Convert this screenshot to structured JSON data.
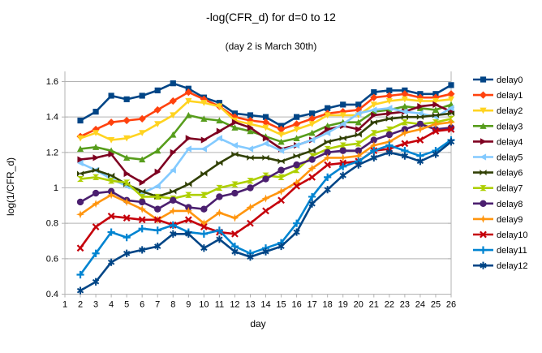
{
  "chart_data": {
    "type": "line",
    "title": "-log(CFR_d) for d=0 to 12",
    "subtitle": "(day 2 is March 30th)",
    "xlabel": "day",
    "ylabel": "log(1/CFR_d)",
    "x_ticks": [
      1,
      2,
      3,
      4,
      5,
      6,
      7,
      8,
      9,
      10,
      11,
      12,
      13,
      14,
      15,
      16,
      17,
      18,
      19,
      20,
      21,
      22,
      23,
      24,
      25,
      26
    ],
    "y_tick_labels": [
      "0.4",
      "0.6",
      "0.8",
      "1",
      "1.2",
      "1.4",
      "1.6"
    ],
    "y_ticks": [
      0.4,
      0.6,
      0.8,
      1.0,
      1.2,
      1.4,
      1.6
    ],
    "xlim": [
      1,
      26
    ],
    "ylim": [
      0.4,
      1.66
    ],
    "grid": "horizontal",
    "legend_position": "right",
    "grid_color": "#b3b3b3",
    "x": [
      2,
      3,
      4,
      5,
      6,
      7,
      8,
      9,
      10,
      11,
      12,
      13,
      14,
      15,
      16,
      17,
      18,
      19,
      20,
      21,
      22,
      23,
      24,
      25,
      26
    ],
    "series": [
      {
        "name": "delay0",
        "color": "#004586",
        "marker": "square",
        "values": [
          1.38,
          1.43,
          1.52,
          1.5,
          1.52,
          1.55,
          1.59,
          1.56,
          1.51,
          1.48,
          1.42,
          1.41,
          1.4,
          1.35,
          1.4,
          1.42,
          1.45,
          1.47,
          1.47,
          1.54,
          1.55,
          1.55,
          1.53,
          1.53,
          1.58
        ]
      },
      {
        "name": "delay1",
        "color": "#FF420E",
        "marker": "diamond",
        "values": [
          1.29,
          1.33,
          1.37,
          1.38,
          1.39,
          1.44,
          1.49,
          1.54,
          1.5,
          1.46,
          1.4,
          1.38,
          1.37,
          1.33,
          1.36,
          1.39,
          1.42,
          1.43,
          1.44,
          1.51,
          1.52,
          1.53,
          1.51,
          1.51,
          1.53
        ]
      },
      {
        "name": "delay2",
        "color": "#FFD320",
        "marker": "arrow-down",
        "values": [
          1.28,
          1.31,
          1.27,
          1.28,
          1.31,
          1.36,
          1.41,
          1.49,
          1.48,
          1.46,
          1.38,
          1.36,
          1.34,
          1.3,
          1.33,
          1.36,
          1.41,
          1.41,
          1.41,
          1.47,
          1.49,
          1.5,
          1.49,
          1.49,
          1.5
        ]
      },
      {
        "name": "delay3",
        "color": "#579D1C",
        "marker": "arrow-up",
        "values": [
          1.22,
          1.23,
          1.21,
          1.17,
          1.16,
          1.21,
          1.3,
          1.41,
          1.39,
          1.38,
          1.34,
          1.32,
          1.29,
          1.26,
          1.28,
          1.31,
          1.35,
          1.37,
          1.37,
          1.43,
          1.44,
          1.46,
          1.45,
          1.44,
          1.47
        ]
      },
      {
        "name": "delay4",
        "color": "#7E0021",
        "marker": "arrow-right",
        "values": [
          1.16,
          1.17,
          1.19,
          1.08,
          1.03,
          1.09,
          1.2,
          1.28,
          1.27,
          1.32,
          1.37,
          1.34,
          1.28,
          1.22,
          1.24,
          1.27,
          1.33,
          1.35,
          1.33,
          1.41,
          1.42,
          1.43,
          1.46,
          1.47,
          1.43
        ]
      },
      {
        "name": "delay5",
        "color": "#83CAFF",
        "marker": "arrow-left",
        "values": [
          1.14,
          1.1,
          1.05,
          1.01,
          0.97,
          1.01,
          1.1,
          1.22,
          1.22,
          1.28,
          1.24,
          1.22,
          1.25,
          1.21,
          1.24,
          1.27,
          1.31,
          1.36,
          1.42,
          1.44,
          1.45,
          1.43,
          1.42,
          1.4,
          1.45
        ]
      },
      {
        "name": "delay6",
        "color": "#314004",
        "marker": "bowtie",
        "values": [
          1.08,
          1.1,
          1.07,
          1.02,
          0.98,
          0.95,
          0.98,
          1.02,
          1.08,
          1.14,
          1.19,
          1.17,
          1.17,
          1.15,
          1.18,
          1.21,
          1.26,
          1.28,
          1.3,
          1.37,
          1.39,
          1.4,
          1.4,
          1.41,
          1.42
        ]
      },
      {
        "name": "delay7",
        "color": "#AECF00",
        "marker": "sandglass",
        "values": [
          1.05,
          1.06,
          1.04,
          1.03,
          0.95,
          0.95,
          0.94,
          0.96,
          0.96,
          1.0,
          1.02,
          1.04,
          1.07,
          1.06,
          1.1,
          1.18,
          1.22,
          1.24,
          1.25,
          1.31,
          1.33,
          1.37,
          1.36,
          1.37,
          1.39
        ]
      },
      {
        "name": "delay8",
        "color": "#4B1F6F",
        "marker": "circle",
        "values": [
          0.92,
          0.97,
          0.98,
          0.93,
          0.92,
          0.88,
          0.93,
          0.89,
          0.88,
          0.95,
          0.97,
          1.0,
          1.05,
          1.1,
          1.13,
          1.16,
          1.2,
          1.21,
          1.21,
          1.27,
          1.3,
          1.33,
          1.36,
          1.33,
          1.34
        ]
      },
      {
        "name": "delay9",
        "color": "#FF950E",
        "marker": "star4",
        "values": [
          0.85,
          0.91,
          0.96,
          0.92,
          0.88,
          0.82,
          0.87,
          0.87,
          0.8,
          0.86,
          0.83,
          0.89,
          0.94,
          0.98,
          1.03,
          1.11,
          1.17,
          1.17,
          1.18,
          1.24,
          1.26,
          1.31,
          1.33,
          1.36,
          1.37
        ]
      },
      {
        "name": "delay10",
        "color": "#C5000B",
        "marker": "x",
        "values": [
          0.66,
          0.78,
          0.84,
          0.83,
          0.82,
          0.82,
          0.79,
          0.82,
          0.78,
          0.75,
          0.74,
          0.8,
          0.87,
          0.93,
          1.01,
          1.06,
          1.13,
          1.14,
          1.15,
          1.21,
          1.22,
          1.25,
          1.27,
          1.32,
          1.33
        ]
      },
      {
        "name": "delay11",
        "color": "#0084D1",
        "marker": "plus",
        "values": [
          0.51,
          0.63,
          0.75,
          0.72,
          0.77,
          0.76,
          0.79,
          0.75,
          0.74,
          0.76,
          0.67,
          0.63,
          0.66,
          0.69,
          0.8,
          0.95,
          1.06,
          1.12,
          1.15,
          1.21,
          1.24,
          1.21,
          1.18,
          1.21,
          1.27
        ]
      },
      {
        "name": "delay12",
        "color": "#004586",
        "marker": "asterisk",
        "values": [
          0.42,
          0.47,
          0.58,
          0.63,
          0.65,
          0.67,
          0.74,
          0.74,
          0.66,
          0.71,
          0.64,
          0.61,
          0.64,
          0.67,
          0.75,
          0.91,
          0.99,
          1.07,
          1.13,
          1.17,
          1.2,
          1.18,
          1.15,
          1.19,
          1.26
        ]
      }
    ]
  }
}
